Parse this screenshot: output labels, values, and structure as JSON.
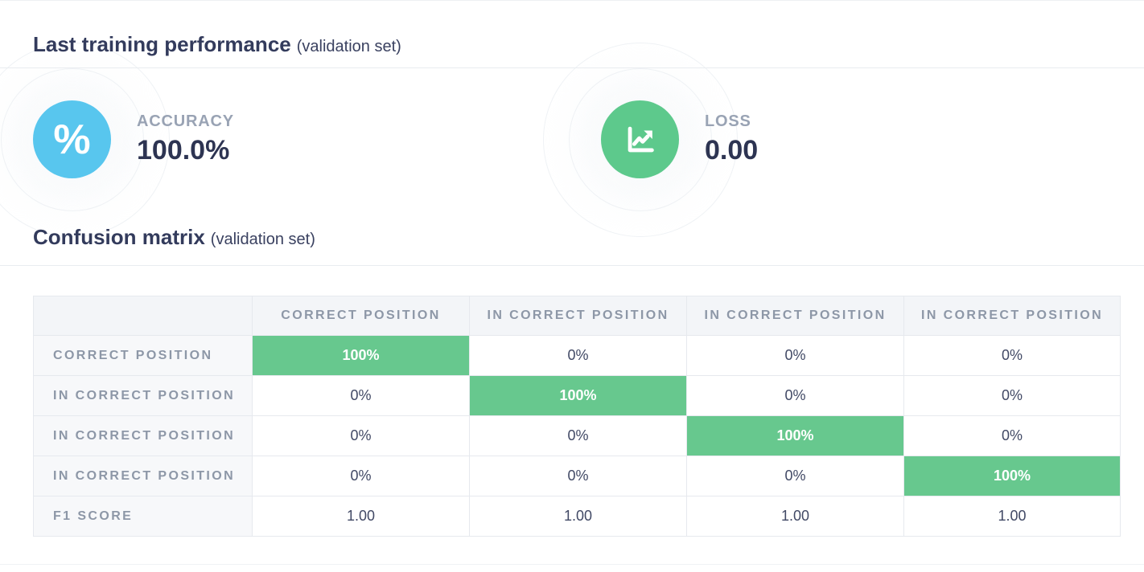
{
  "sections": {
    "performance": {
      "title": "Last training performance",
      "subtitle": "(validation set)"
    },
    "confusion": {
      "title": "Confusion matrix",
      "subtitle": "(validation set)"
    }
  },
  "metrics": [
    {
      "label": "ACCURACY",
      "value": "100.0%",
      "icon": "percent-icon",
      "icon_bg": "#58c6ee"
    },
    {
      "label": "LOSS",
      "value": "0.00",
      "icon": "chart-line-icon",
      "icon_bg": "#5dc98c"
    }
  ],
  "percent_glyph": "%",
  "confusion_matrix": {
    "column_headers": [
      "CORRECT POSITION",
      "IN CORRECT POSITION",
      "IN CORRECT POSITION",
      "IN CORRECT POSITION"
    ],
    "rows": [
      {
        "label": "CORRECT POSITION",
        "values": [
          "100%",
          "0%",
          "0%",
          "0%"
        ],
        "highlight": 0
      },
      {
        "label": "IN CORRECT POSITION",
        "values": [
          "0%",
          "100%",
          "0%",
          "0%"
        ],
        "highlight": 1
      },
      {
        "label": "IN CORRECT POSITION",
        "values": [
          "0%",
          "0%",
          "100%",
          "0%"
        ],
        "highlight": 2
      },
      {
        "label": "IN CORRECT POSITION",
        "values": [
          "0%",
          "0%",
          "0%",
          "100%"
        ],
        "highlight": 3
      },
      {
        "label": "F1 SCORE",
        "values": [
          "1.00",
          "1.00",
          "1.00",
          "1.00"
        ],
        "highlight": -1
      }
    ]
  },
  "colors": {
    "accent_green": "#67c88e",
    "accent_blue": "#58c6ee",
    "navy_text": "#333b5c",
    "muted_label": "#8d97a7"
  }
}
